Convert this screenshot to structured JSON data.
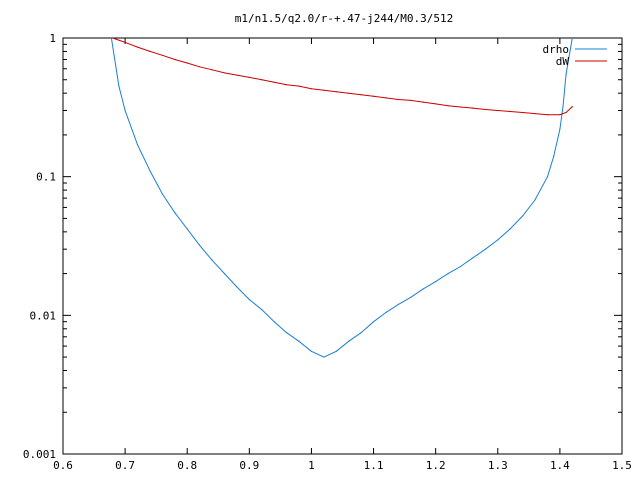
{
  "chart_data": {
    "type": "line",
    "title": "m1/n1.5/q2.0/r-+.47-j244/M0.3/512",
    "xlabel": "",
    "ylabel": "",
    "xlim": [
      0.6,
      1.5
    ],
    "ylim": [
      0.001,
      1
    ],
    "yscale": "log",
    "grid": false,
    "legend_position": "top-right",
    "x_ticks": [
      0.6,
      0.7,
      0.8,
      0.9,
      1,
      1.1,
      1.2,
      1.3,
      1.4,
      1.5
    ],
    "x_tick_labels": [
      "0.6",
      "0.7",
      "0.8",
      "0.9",
      "1",
      "1.1",
      "1.2",
      "1.3",
      "1.4",
      "1.5"
    ],
    "y_ticks": [
      0.001,
      0.01,
      0.1,
      1
    ],
    "y_tick_labels": [
      "0.001",
      "0.01",
      "0.1",
      "1"
    ],
    "series": [
      {
        "name": "drho",
        "color": "#1a7fd4",
        "x": [
          0.678,
          0.69,
          0.7,
          0.72,
          0.74,
          0.76,
          0.78,
          0.8,
          0.82,
          0.84,
          0.86,
          0.88,
          0.9,
          0.92,
          0.94,
          0.96,
          0.98,
          1.0,
          1.02,
          1.04,
          1.06,
          1.08,
          1.1,
          1.12,
          1.14,
          1.16,
          1.18,
          1.2,
          1.22,
          1.24,
          1.26,
          1.28,
          1.3,
          1.32,
          1.34,
          1.36,
          1.38,
          1.39,
          1.4,
          1.405,
          1.41,
          1.42
        ],
        "values": [
          1.0,
          0.45,
          0.3,
          0.17,
          0.11,
          0.075,
          0.055,
          0.042,
          0.032,
          0.025,
          0.02,
          0.016,
          0.013,
          0.011,
          0.009,
          0.0075,
          0.0065,
          0.0055,
          0.005,
          0.0055,
          0.0065,
          0.0075,
          0.009,
          0.0105,
          0.012,
          0.0135,
          0.0155,
          0.0175,
          0.02,
          0.0225,
          0.026,
          0.03,
          0.035,
          0.042,
          0.052,
          0.068,
          0.1,
          0.14,
          0.22,
          0.32,
          0.55,
          1.0
        ]
      },
      {
        "name": "dW",
        "color": "#cc0000",
        "x": [
          0.68,
          0.7,
          0.72,
          0.74,
          0.76,
          0.78,
          0.8,
          0.82,
          0.84,
          0.86,
          0.88,
          0.9,
          0.92,
          0.94,
          0.96,
          0.98,
          1.0,
          1.02,
          1.04,
          1.06,
          1.08,
          1.1,
          1.12,
          1.14,
          1.16,
          1.18,
          1.2,
          1.22,
          1.24,
          1.26,
          1.28,
          1.3,
          1.32,
          1.34,
          1.36,
          1.38,
          1.4,
          1.41,
          1.42
        ],
        "values": [
          1.0,
          0.93,
          0.86,
          0.8,
          0.75,
          0.7,
          0.66,
          0.62,
          0.59,
          0.56,
          0.54,
          0.52,
          0.5,
          0.48,
          0.46,
          0.45,
          0.43,
          0.42,
          0.41,
          0.4,
          0.39,
          0.38,
          0.37,
          0.36,
          0.355,
          0.345,
          0.335,
          0.325,
          0.318,
          0.312,
          0.305,
          0.3,
          0.295,
          0.29,
          0.285,
          0.28,
          0.28,
          0.29,
          0.32
        ]
      }
    ]
  }
}
